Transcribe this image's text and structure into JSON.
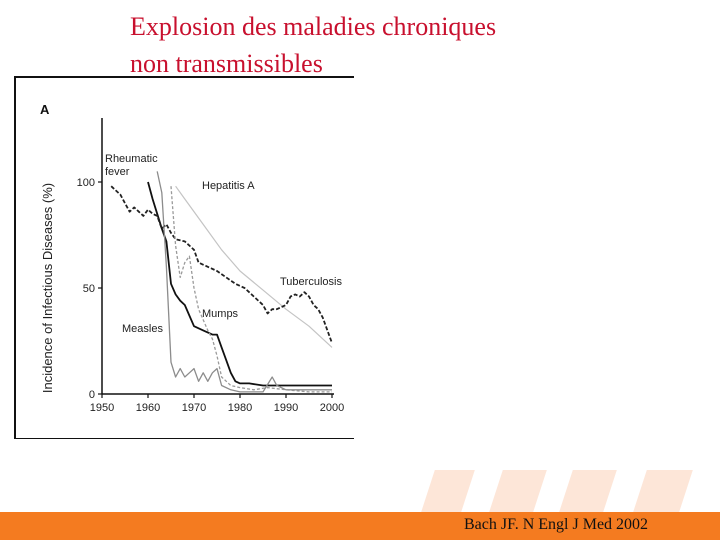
{
  "slide": {
    "title_line1": "Explosion des maladies chroniques",
    "title_line2": "non transmissibles",
    "citation": "Bach JF. N Engl J Med  2002",
    "colors": {
      "title": "#c8102e",
      "footer": "#f47b20",
      "decoration": "#fde6d8"
    }
  },
  "chart_data": {
    "type": "line",
    "panel_label": "A",
    "title": "",
    "xlabel": "",
    "ylabel": "Incidence of Infectious Diseases (%)",
    "xlim": [
      1950,
      2000
    ],
    "ylim": [
      0,
      120
    ],
    "xticks": [
      "1950",
      "1960",
      "1970",
      "1980",
      "1990",
      "2000"
    ],
    "yticks": [
      "0",
      "50",
      "100"
    ],
    "grid": false,
    "series": [
      {
        "name": "Rheumatic fever",
        "style": "solid-black",
        "label_lines": [
          "Rheumatic",
          "fever"
        ],
        "points": [
          [
            1960,
            100
          ],
          [
            1961,
            92
          ],
          [
            1962,
            85
          ],
          [
            1963,
            78
          ],
          [
            1964,
            72
          ],
          [
            1965,
            52
          ],
          [
            1966,
            47
          ],
          [
            1967,
            44
          ],
          [
            1968,
            42
          ],
          [
            1969,
            37
          ],
          [
            1970,
            32
          ],
          [
            1972,
            30
          ],
          [
            1974,
            28
          ],
          [
            1975,
            28
          ],
          [
            1976,
            22
          ],
          [
            1977,
            16
          ],
          [
            1978,
            10
          ],
          [
            1979,
            6
          ],
          [
            1980,
            5
          ],
          [
            1982,
            5
          ],
          [
            1985,
            4
          ],
          [
            1990,
            4
          ],
          [
            2000,
            4
          ]
        ]
      },
      {
        "name": "Hepatitis A",
        "style": "light-gray",
        "label_lines": [
          "Hepatitis A"
        ],
        "points": [
          [
            1966,
            98
          ],
          [
            1968,
            92
          ],
          [
            1972,
            80
          ],
          [
            1976,
            68
          ],
          [
            1980,
            58
          ],
          [
            1985,
            49
          ],
          [
            1990,
            40
          ],
          [
            1995,
            32
          ],
          [
            2000,
            22
          ]
        ]
      },
      {
        "name": "Tuberculosis",
        "style": "dashed-black",
        "label_lines": [
          "Tuberculosis"
        ],
        "points": [
          [
            1952,
            98
          ],
          [
            1954,
            94
          ],
          [
            1955,
            90
          ],
          [
            1956,
            86
          ],
          [
            1957,
            88
          ],
          [
            1958,
            86
          ],
          [
            1959,
            84
          ],
          [
            1960,
            87
          ],
          [
            1961,
            85
          ],
          [
            1962,
            84
          ],
          [
            1963,
            78
          ],
          [
            1964,
            80
          ],
          [
            1965,
            76
          ],
          [
            1966,
            73
          ],
          [
            1968,
            72
          ],
          [
            1970,
            68
          ],
          [
            1971,
            62
          ],
          [
            1973,
            60
          ],
          [
            1975,
            58
          ],
          [
            1977,
            55
          ],
          [
            1979,
            52
          ],
          [
            1981,
            50
          ],
          [
            1983,
            46
          ],
          [
            1985,
            42
          ],
          [
            1986,
            38
          ],
          [
            1987,
            40
          ],
          [
            1988,
            40
          ],
          [
            1990,
            42
          ],
          [
            1991,
            46
          ],
          [
            1992,
            47
          ],
          [
            1993,
            46
          ],
          [
            1994,
            48
          ],
          [
            1995,
            46
          ],
          [
            1996,
            42
          ],
          [
            1997,
            40
          ],
          [
            1998,
            36
          ],
          [
            1999,
            30
          ],
          [
            2000,
            24
          ]
        ]
      },
      {
        "name": "Mumps",
        "style": "dashed-gray",
        "label_lines": [
          "Mumps"
        ],
        "points": [
          [
            1965,
            98
          ],
          [
            1966,
            70
          ],
          [
            1967,
            55
          ],
          [
            1968,
            62
          ],
          [
            1969,
            65
          ],
          [
            1970,
            50
          ],
          [
            1971,
            40
          ],
          [
            1973,
            30
          ],
          [
            1974,
            26
          ],
          [
            1975,
            18
          ],
          [
            1976,
            8
          ],
          [
            1978,
            4
          ],
          [
            1980,
            3
          ],
          [
            1983,
            2
          ],
          [
            1986,
            3
          ],
          [
            1990,
            2
          ],
          [
            1995,
            1
          ],
          [
            2000,
            1
          ]
        ]
      },
      {
        "name": "Measles",
        "style": "solid-gray",
        "label_lines": [
          "Measles"
        ],
        "points": [
          [
            1962,
            105
          ],
          [
            1963,
            95
          ],
          [
            1964,
            60
          ],
          [
            1965,
            15
          ],
          [
            1966,
            8
          ],
          [
            1967,
            12
          ],
          [
            1968,
            8
          ],
          [
            1969,
            10
          ],
          [
            1970,
            12
          ],
          [
            1971,
            6
          ],
          [
            1972,
            10
          ],
          [
            1973,
            6
          ],
          [
            1974,
            10
          ],
          [
            1975,
            12
          ],
          [
            1976,
            4
          ],
          [
            1978,
            2
          ],
          [
            1980,
            1
          ],
          [
            1985,
            1
          ],
          [
            1987,
            8
          ],
          [
            1988,
            4
          ],
          [
            1990,
            2
          ],
          [
            1995,
            2
          ],
          [
            2000,
            2
          ]
        ]
      }
    ]
  }
}
